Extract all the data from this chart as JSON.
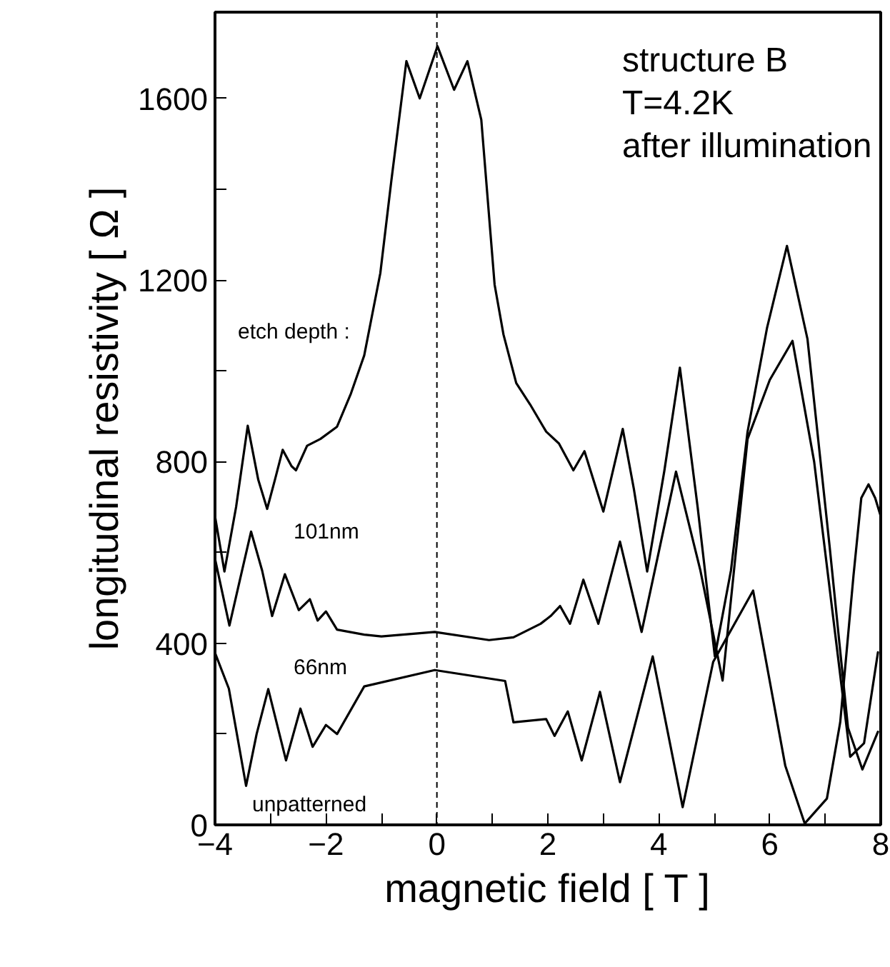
{
  "chart_data": {
    "type": "line",
    "xlabel": "magnetic field [ T ]",
    "ylabel": "longitudinal resistivity [ Ω ]",
    "xlim": [
      -4,
      8
    ],
    "ylim": [
      0,
      1790
    ],
    "xticks": [
      -4,
      {
        "value": -3,
        "label": null
      },
      -2,
      {
        "value": -1,
        "label": null
      },
      0,
      {
        "value": 1,
        "label": null
      },
      2,
      {
        "value": 3,
        "label": null
      },
      4,
      {
        "value": 5,
        "label": null
      },
      6,
      {
        "value": 7,
        "label": null
      },
      8
    ],
    "yticks": [
      0,
      {
        "value": 200,
        "label": null
      },
      400,
      {
        "value": 600,
        "label": null
      },
      800,
      {
        "value": 1000,
        "label": null
      },
      1200,
      {
        "value": 1400,
        "label": null
      },
      1600
    ],
    "grid": false,
    "marker": "none",
    "line_style": "solid",
    "series": [
      {
        "color": "#000000",
        "x": [
          -4,
          -3.83,
          -3.62,
          -3.41,
          -3.22,
          -3.06,
          -2.92,
          -2.78,
          -2.62,
          -2.54,
          -2.34,
          -2.1,
          -1.8,
          -1.55,
          -1.31,
          -1.02,
          -0.82,
          -0.55,
          -0.31,
          0.01,
          0.31,
          0.55,
          0.8,
          1.04,
          1.2,
          1.43,
          1.68,
          1.97,
          2.2,
          2.46,
          2.66,
          3.0,
          3.35,
          3.55,
          3.79,
          4.1,
          4.38,
          4.7,
          5.01,
          5.3,
          5.6,
          5.95,
          6.31,
          6.68,
          7.08,
          7.41,
          7.67,
          7.95
        ],
        "values": [
          680,
          558,
          700,
          879,
          760,
          696,
          760,
          826,
          790,
          781,
          835,
          850,
          877,
          950,
          1034,
          1215,
          1420,
          1682,
          1600,
          1715,
          1619,
          1682,
          1553,
          1190,
          1080,
          973,
          926,
          866,
          840,
          781,
          823,
          690,
          872,
          740,
          558,
          780,
          1007,
          700,
          371,
          560,
          866,
          1094,
          1275,
          1070,
          612,
          214,
          122,
          205
        ]
      },
      {
        "color": "#000000",
        "x": [
          -4,
          -3.74,
          -3.55,
          -3.35,
          -3.15,
          -2.97,
          -2.74,
          -2.49,
          -2.29,
          -2.15,
          -2.0,
          -1.8,
          -1.31,
          -1.0,
          -0.04,
          0.94,
          1.38,
          1.87,
          2.05,
          2.22,
          2.4,
          2.64,
          2.91,
          3.3,
          3.69,
          4.31,
          4.75,
          5.15,
          5.6,
          6.0,
          6.41,
          6.8,
          7.2,
          7.45,
          7.7,
          7.95
        ],
        "values": [
          586,
          439,
          540,
          646,
          560,
          460,
          552,
          473,
          497,
          450,
          470,
          430,
          419,
          415,
          425,
          407,
          413,
          443,
          460,
          482,
          443,
          540,
          443,
          624,
          425,
          778,
          560,
          318,
          850,
          980,
          1066,
          800,
          400,
          150,
          180,
          380
        ]
      },
      {
        "color": "#000000",
        "x": [
          -4,
          -3.75,
          -3.44,
          -3.25,
          -3.04,
          -2.72,
          -2.46,
          -2.24,
          -2.0,
          -1.8,
          -1.31,
          -0.04,
          1.23,
          1.38,
          1.97,
          2.12,
          2.36,
          2.61,
          2.94,
          3.3,
          3.89,
          4.43,
          4.98,
          5.7,
          6.28,
          6.63,
          7.03,
          7.27,
          7.51,
          7.65,
          7.78,
          7.9,
          8
        ],
        "values": [
          379,
          300,
          86,
          200,
          299,
          142,
          256,
          172,
          220,
          200,
          305,
          341,
          317,
          226,
          233,
          196,
          250,
          142,
          293,
          94,
          371,
          39,
          359,
          516,
          130,
          3,
          58,
          226,
          550,
          720,
          750,
          720,
          680
        ]
      }
    ],
    "ref_lines": [
      {
        "axis": "x",
        "value": 0,
        "line_style": "dashed",
        "color": "#000000"
      }
    ],
    "annotations": [
      "structure B",
      "T=4.2K",
      "after illumination",
      "etch depth :",
      "101nm",
      "66nm",
      "unpatterned"
    ]
  }
}
